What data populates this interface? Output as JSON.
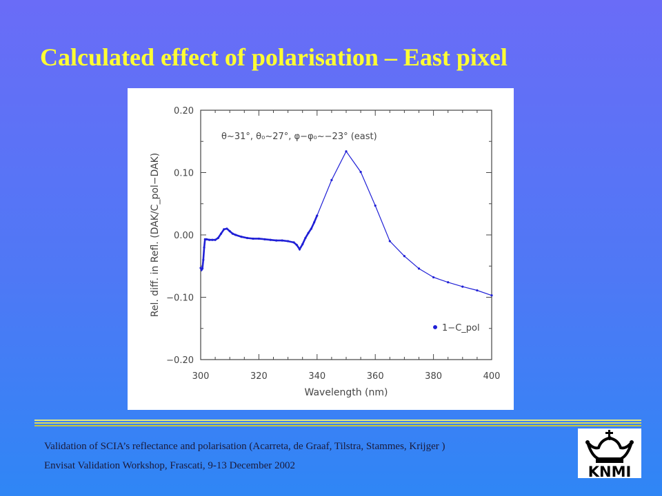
{
  "slide": {
    "title": "Calculated effect of polarisation – East pixel",
    "footer_line1": "Validation of SCIA’s reflectance and polarisation (Acarreta, de Graaf, Tilstra, Stammes, Krijger )",
    "footer_line2": "Envisat Validation Workshop, Frascati, 9-13 December 2002",
    "logo_text": "KNMI"
  },
  "colors": {
    "title": "#ffff33",
    "series": "#1f1fd6",
    "axis": "#444444"
  },
  "chart_data": {
    "type": "line",
    "xlabel": "Wavelength (nm)",
    "ylabel": "Rel. diff. in Refl. (DAK/C_pol−DAK)",
    "annotation": "θ~31°, θ₀~27°, φ−φ₀~−23° (east)",
    "xlim": [
      300,
      400
    ],
    "ylim": [
      -0.2,
      0.2
    ],
    "xticks": [
      "300",
      "320",
      "340",
      "360",
      "380",
      "400"
    ],
    "yticks": [
      "0.20",
      "0.10",
      "0.00",
      "−0.10",
      "−0.20"
    ],
    "series": [
      {
        "name": "1−C_pol",
        "x": [
          300.0,
          300.3,
          300.6,
          300.9,
          301.2,
          301.5,
          302,
          303,
          304,
          305,
          306,
          307,
          308,
          309,
          310,
          311,
          312,
          314,
          316,
          318,
          320,
          322,
          324,
          326,
          328,
          330,
          332,
          333,
          334,
          335,
          336,
          337,
          338,
          339,
          340,
          345,
          350,
          355,
          360,
          365,
          370,
          375,
          380,
          385,
          390,
          395,
          400
        ],
        "y": [
          -0.053,
          -0.056,
          -0.054,
          -0.04,
          -0.02,
          -0.007,
          -0.007,
          -0.008,
          -0.008,
          -0.008,
          -0.005,
          0.002,
          0.009,
          0.01,
          0.006,
          0.002,
          0.0,
          -0.003,
          -0.005,
          -0.006,
          -0.006,
          -0.007,
          -0.008,
          -0.009,
          -0.009,
          -0.01,
          -0.012,
          -0.016,
          -0.023,
          -0.015,
          -0.005,
          0.003,
          0.01,
          0.02,
          0.031,
          0.088,
          0.134,
          0.101,
          0.047,
          -0.01,
          -0.034,
          -0.054,
          -0.068,
          -0.076,
          -0.083,
          -0.089,
          -0.097
        ]
      }
    ],
    "legend": {
      "placement": "bottom-right",
      "label": "1−C_pol"
    }
  }
}
